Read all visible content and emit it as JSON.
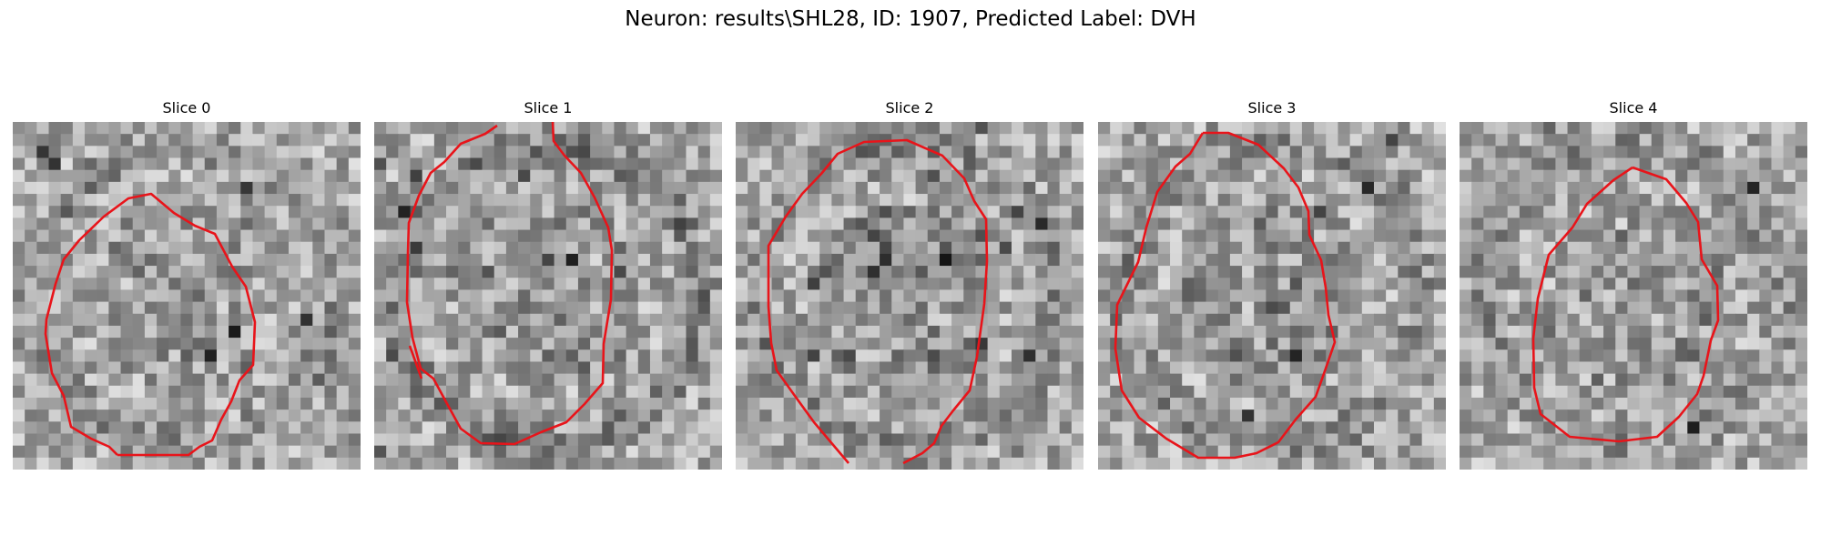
{
  "title": "Neuron: results\\SHL28, ID: 1907, Predicted Label: DVH",
  "contour_color": "#e8141a",
  "panels": [
    {
      "label": "Slice 0",
      "seed": 11,
      "dark_ring": 0.55,
      "dark_spots": 0.35
    },
    {
      "label": "Slice 1",
      "seed": 23,
      "dark_ring": 0.85,
      "dark_spots": 0.55
    },
    {
      "label": "Slice 2",
      "seed": 37,
      "dark_ring": 0.6,
      "dark_spots": 0.7
    },
    {
      "label": "Slice 3",
      "seed": 41,
      "dark_ring": 0.5,
      "dark_spots": 0.6
    },
    {
      "label": "Slice 4",
      "seed": 59,
      "dark_ring": 0.45,
      "dark_spots": 0.4
    }
  ]
}
